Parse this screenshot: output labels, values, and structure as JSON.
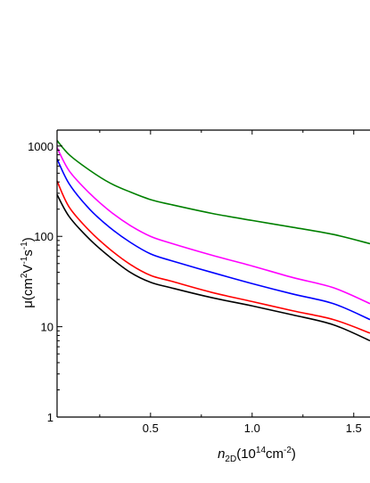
{
  "chart_data": {
    "type": "line",
    "xscale": "linear",
    "yscale": "log",
    "xlim": [
      0.04,
      1.58
    ],
    "ylim": [
      1,
      1500
    ],
    "x_ticks": [
      0.5,
      1.0,
      1.5
    ],
    "x_tick_labels": [
      "0.5",
      "1.0",
      "1.5"
    ],
    "y_ticks": [
      1,
      10,
      100,
      1000
    ],
    "y_tick_labels": [
      "1",
      "10",
      "100",
      "1000"
    ],
    "xlabel": {
      "symbol": "n",
      "sub": "2D",
      "open": "(10",
      "exp1": "14",
      "unit": "cm",
      "exp2": "-2",
      "close": ")"
    },
    "ylabel": {
      "prefix": "μ(cm",
      "exp1": "2",
      "mid1": "V",
      "exp2": "-1",
      "mid2": "s",
      "exp3": "-1",
      "close": ")"
    },
    "grid": false,
    "series": [
      {
        "color": "#008000",
        "x": [
          0.04,
          0.1,
          0.2,
          0.3,
          0.4,
          0.5,
          0.6,
          0.8,
          1.0,
          1.2,
          1.4,
          1.58
        ],
        "y": [
          1150,
          800,
          540,
          390,
          310,
          255,
          225,
          180,
          150,
          126,
          105,
          83
        ]
      },
      {
        "color": "#ff00ff",
        "x": [
          0.04,
          0.1,
          0.2,
          0.3,
          0.4,
          0.5,
          0.6,
          0.8,
          1.0,
          1.2,
          1.4,
          1.58
        ],
        "y": [
          960,
          530,
          300,
          190,
          132,
          100,
          84,
          62,
          47,
          35,
          27,
          18
        ]
      },
      {
        "color": "#0000ff",
        "x": [
          0.04,
          0.1,
          0.2,
          0.3,
          0.4,
          0.5,
          0.6,
          0.8,
          1.0,
          1.2,
          1.4,
          1.58
        ],
        "y": [
          720,
          380,
          200,
          125,
          86,
          64,
          54,
          40,
          30,
          23,
          18,
          12
        ]
      },
      {
        "color": "#ff0000",
        "x": [
          0.04,
          0.1,
          0.2,
          0.3,
          0.4,
          0.5,
          0.6,
          0.8,
          1.0,
          1.2,
          1.4,
          1.58
        ],
        "y": [
          410,
          210,
          115,
          72,
          49,
          37,
          32,
          24,
          19,
          15,
          12,
          8.5
        ]
      },
      {
        "color": "#000000",
        "x": [
          0.04,
          0.1,
          0.2,
          0.3,
          0.4,
          0.5,
          0.6,
          0.8,
          1.0,
          1.2,
          1.4,
          1.58
        ],
        "y": [
          290,
          165,
          93,
          59,
          40,
          31,
          27,
          21,
          17,
          13.5,
          10.5,
          7
        ]
      }
    ]
  }
}
